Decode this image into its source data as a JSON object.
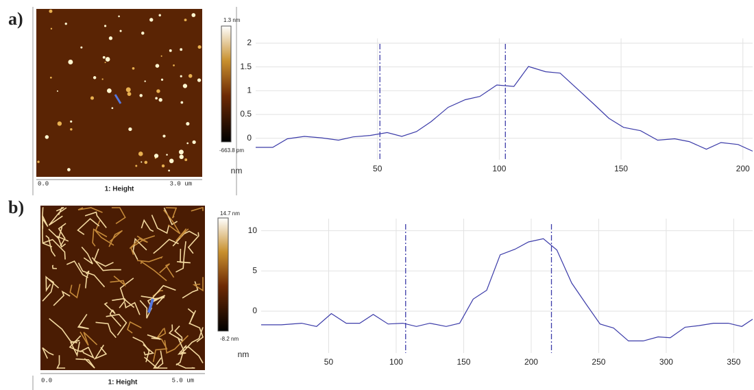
{
  "chart_data": [
    {
      "type": "line",
      "panel_label": "a)",
      "image": {
        "scale_max": "1.3 nm",
        "scale_min": "-663.8 pm",
        "x_start": "0.0",
        "caption": "1: Height",
        "x_end": "3.0 um"
      },
      "ylabel": "nm",
      "x": [
        0,
        7,
        13,
        20,
        27,
        34,
        40,
        47,
        54,
        60,
        66,
        72,
        79,
        86,
        92,
        99,
        106,
        112,
        119,
        125,
        132,
        139,
        145,
        151,
        158,
        165,
        172,
        178,
        185,
        191,
        198,
        204
      ],
      "values": [
        -0.19,
        -0.19,
        -0.01,
        0.04,
        0.01,
        -0.04,
        0.03,
        0.06,
        0.12,
        0.04,
        0.14,
        0.35,
        0.65,
        0.81,
        0.88,
        1.12,
        1.09,
        1.51,
        1.4,
        1.37,
        1.04,
        0.71,
        0.42,
        0.23,
        0.16,
        -0.04,
        -0.01,
        -0.07,
        -0.23,
        -0.09,
        -0.13,
        -0.27
      ],
      "color": "#3a3aa8",
      "cursors": [
        51,
        102.5
      ],
      "xlim": [
        0,
        204
      ],
      "ylim": [
        -0.45,
        2.1
      ],
      "xticks": [
        50,
        100,
        150,
        200
      ],
      "yticks": [
        0,
        0.5,
        1,
        1.5,
        2
      ],
      "grid": true
    },
    {
      "type": "line",
      "panel_label": "b)",
      "image": {
        "scale_max": "14.7 nm",
        "scale_min": "-8.2 nm",
        "x_start": "0.0",
        "caption": "1: Height",
        "x_end": "5.0 um"
      },
      "ylabel": "nm",
      "x": [
        0,
        15,
        30,
        41,
        52,
        63,
        73,
        83,
        94,
        105,
        115,
        125,
        137,
        147,
        157,
        167,
        177,
        188,
        198,
        209,
        219,
        230,
        241,
        251,
        261,
        272,
        283,
        294,
        303,
        314,
        324,
        335,
        346,
        356,
        364
      ],
      "values": [
        -1.7,
        -1.7,
        -1.5,
        -1.9,
        -0.3,
        -1.5,
        -1.5,
        -0.4,
        -1.6,
        -1.5,
        -1.9,
        -1.5,
        -1.9,
        -1.5,
        1.5,
        2.6,
        7.0,
        7.7,
        8.6,
        9.0,
        7.6,
        3.5,
        0.8,
        -1.6,
        -2.1,
        -3.7,
        -3.7,
        -3.2,
        -3.3,
        -2.0,
        -1.8,
        -1.5,
        -1.5,
        -1.9,
        -1.0
      ],
      "color": "#3a3aa8",
      "cursors": [
        107,
        215
      ],
      "xlim": [
        0,
        364
      ],
      "ylim": [
        -5.2,
        11.5
      ],
      "xticks": [
        50,
        100,
        150,
        200,
        250,
        300,
        350
      ],
      "yticks": [
        0,
        5,
        10
      ],
      "grid": true
    }
  ]
}
